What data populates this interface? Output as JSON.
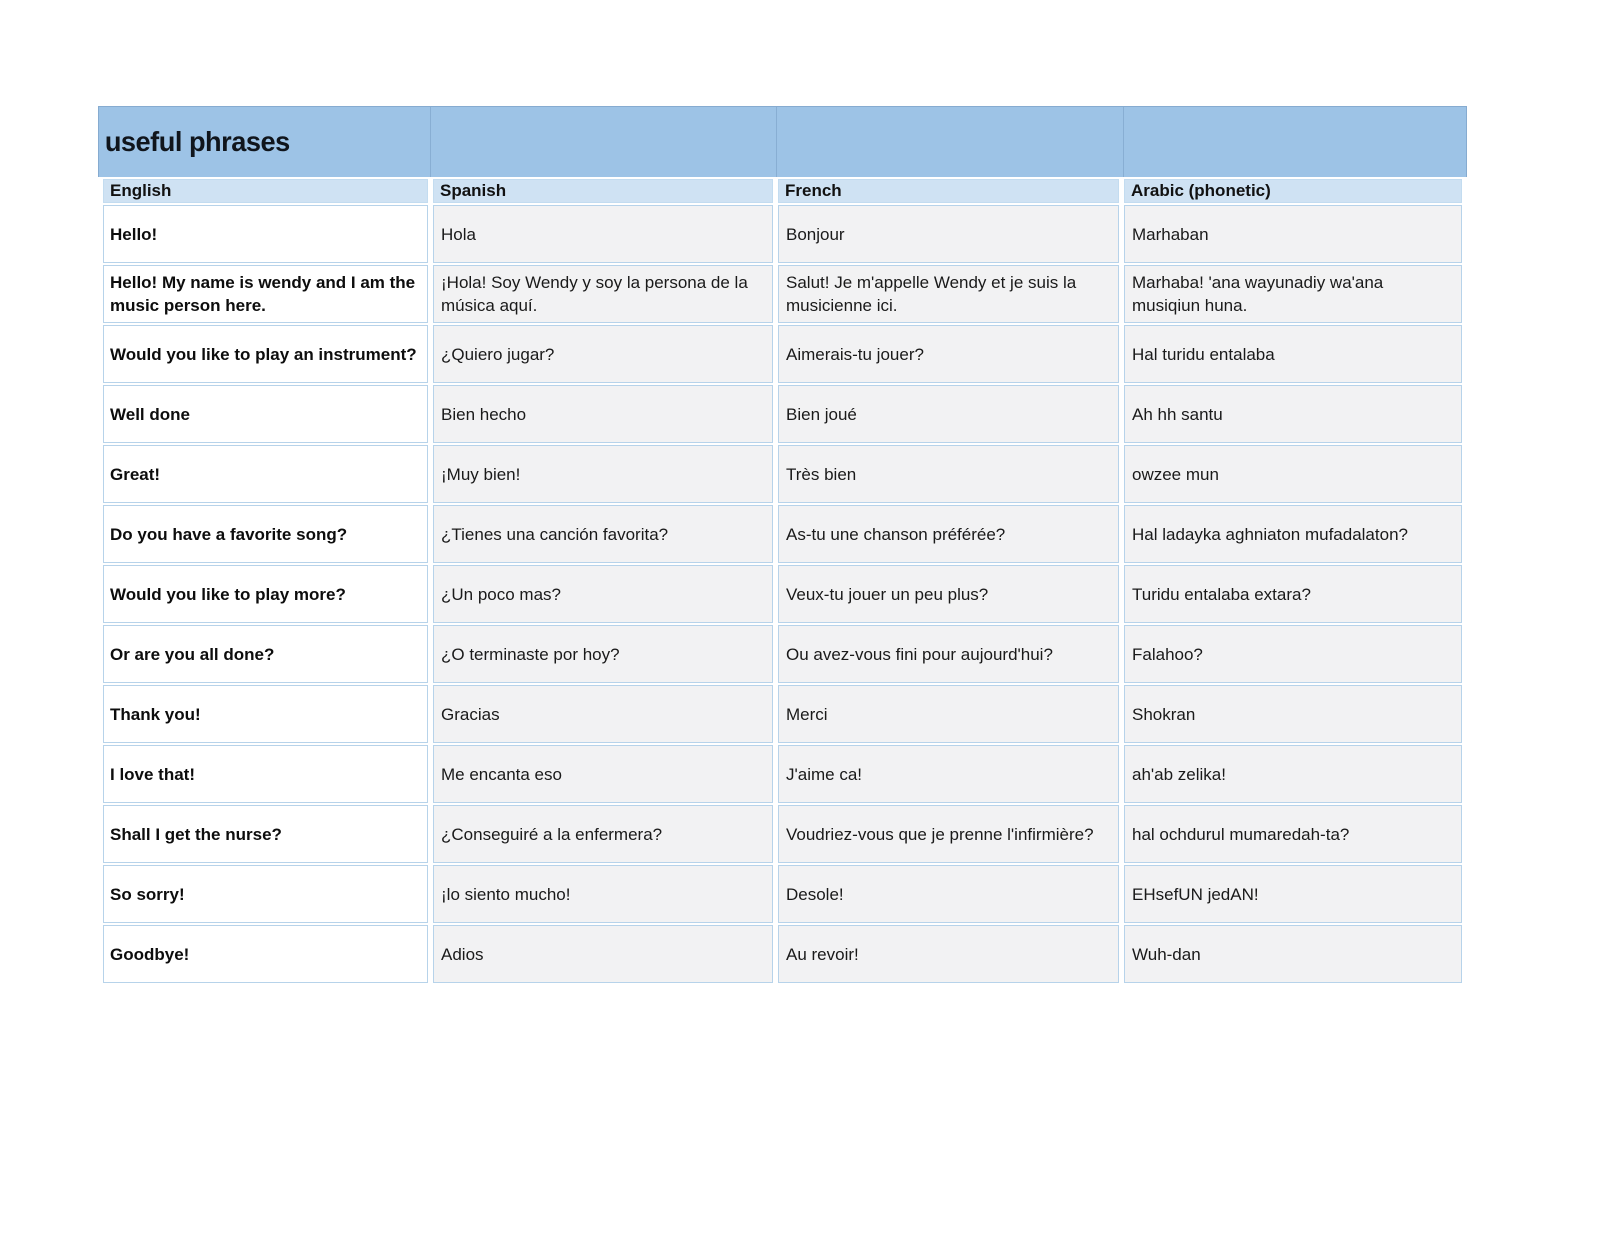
{
  "table": {
    "title": "useful phrases",
    "columns": [
      "English",
      "Spanish",
      "French",
      "Arabic (phonetic)"
    ],
    "rows": [
      {
        "english": "Hello!",
        "spanish": "Hola",
        "french": "Bonjour",
        "arabic": "Marhaban"
      },
      {
        "english": "Hello! My name is wendy and I am the music person here.",
        "spanish": "¡Hola! Soy Wendy y soy la persona de la música aquí.",
        "french": "Salut! Je m'appelle Wendy et je suis la musicienne ici.",
        "arabic": "Marhaba! 'ana wayunadiy wa'ana musiqiun huna."
      },
      {
        "english": "Would you like to play an instrument?",
        "spanish": "¿Quiero jugar?",
        "french": "Aimerais-tu jouer?",
        "arabic": "Hal turidu entalaba"
      },
      {
        "english": "Well done",
        "spanish": "Bien hecho",
        "french": "Bien joué",
        "arabic": "Ah hh santu"
      },
      {
        "english": "Great!",
        "spanish": "¡Muy bien!",
        "french": "Très bien",
        "arabic": "owzee mun"
      },
      {
        "english": "Do you have a favorite song?",
        "spanish": "¿Tienes una canción favorita?",
        "french": "As-tu une chanson préférée?",
        "arabic": "Hal ladayka aghniaton mufadalaton?"
      },
      {
        "english": "Would you like to play more?",
        "spanish": "¿Un poco mas?",
        "french": "Veux-tu jouer un peu plus?",
        "arabic": "Turidu entalaba extara?"
      },
      {
        "english": "Or are you all done?",
        "spanish": "¿O terminaste por hoy?",
        "french": "Ou avez-vous fini pour aujourd'hui?",
        "arabic": "Falahoo?"
      },
      {
        "english": "Thank you!",
        "spanish": "Gracias",
        "french": "Merci",
        "arabic": "Shokran"
      },
      {
        "english": "I love that!",
        "spanish": "Me encanta eso",
        "french": "J'aime ca!",
        "arabic": "ah'ab zelika!"
      },
      {
        "english": "Shall I get the nurse?",
        "spanish": "¿Conseguiré a la enfermera?",
        "french": "Voudriez-vous que je prenne l'infirmière?",
        "arabic": "hal ochdurul mumaredah-ta?"
      },
      {
        "english": "So sorry!",
        "spanish": "¡lo siento mucho!",
        "french": "Desole!",
        "arabic": "EHsefUN jedAN!"
      },
      {
        "english": "Goodbye!",
        "spanish": "Adios",
        "french": "Au revoir!",
        "arabic": "Wuh-dan"
      }
    ],
    "colors": {
      "title_band": "#9dc3e6",
      "title_separator": "#88aed3",
      "header_row": "#cfe2f3",
      "data_cell_gray": "#f2f2f3",
      "data_cell_white": "#ffffff",
      "cell_border": "#b7d3ea",
      "text": "#161616"
    }
  }
}
